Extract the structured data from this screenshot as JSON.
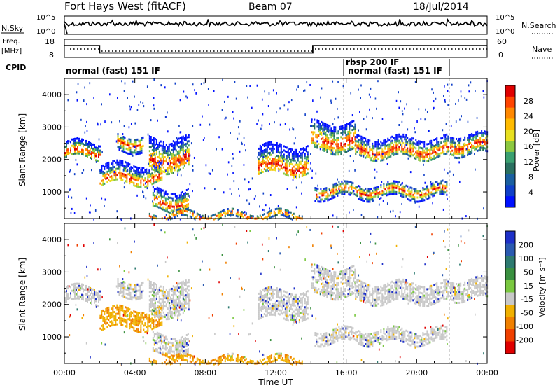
{
  "header": {
    "radar": "Fort Hays West (fitACF)",
    "beam": "Beam 07",
    "date": "18/Jul/2014"
  },
  "noise_panel": {
    "left_label": "N.Sky",
    "right_label": "N.Search",
    "left_ticks": [
      "10^5",
      "10^0"
    ],
    "right_ticks": [
      "10^5",
      "10^0"
    ]
  },
  "freq_panel": {
    "left_label_1": "Freq.",
    "left_label_2": "[MHz]",
    "right_label": "Nave",
    "left_ticks": [
      "18",
      "8"
    ],
    "right_ticks": [
      "60",
      "0"
    ],
    "freq_steps": [
      {
        "start": 0,
        "end": 2.0,
        "mhz": 14.5
      },
      {
        "start": 2.0,
        "end": 14.1,
        "mhz": 10.5
      },
      {
        "start": 14.1,
        "end": 24,
        "mhz": 14.5
      }
    ]
  },
  "cpid": {
    "label": "CPID",
    "programs": [
      {
        "text": "normal (fast) 151 IF",
        "start": 0,
        "row": 1
      },
      {
        "text": "rbsp 200 IF",
        "start": 16.0,
        "row": 0
      },
      {
        "text": "normal (fast) 151 IF",
        "start": 16.3,
        "row": 1
      }
    ],
    "boundaries": [
      16.0,
      21.9
    ]
  },
  "axes": {
    "x_ticks": [
      "00:00",
      "04:00",
      "08:00",
      "12:00",
      "16:00",
      "20:00",
      "00:00"
    ],
    "x_label": "Time UT",
    "x_range_hours": [
      0,
      24
    ],
    "y_label": "Slant Range [km]",
    "y_ticks": [
      "4000",
      "3000",
      "2000",
      "1000"
    ],
    "y_range_km": [
      180,
      4500
    ]
  },
  "colorbars": {
    "power": {
      "title": "Power [dB]",
      "labels": [
        "28",
        "24",
        "20",
        "16",
        "12",
        "8",
        "4"
      ],
      "colors": [
        "#e00000",
        "#ff4400",
        "#ff8800",
        "#ffbb00",
        "#e8e020",
        "#8cc840",
        "#3aa070",
        "#2a7060",
        "#1a5fa0",
        "#1040c8",
        "#0010ff"
      ]
    },
    "velocity": {
      "title": "Velocity [m s⁻¹]",
      "labels": [
        "200",
        "100",
        "50",
        "15",
        "-15",
        "-50",
        "-100",
        "-200"
      ],
      "colors": [
        "#1e30c8",
        "#2a5ab0",
        "#2d7a70",
        "#3a9040",
        "#7ac840",
        "#c8c8c8",
        "#f0b000",
        "#f08000",
        "#f04000",
        "#e00000"
      ]
    }
  },
  "chart_data": {
    "type": "heatmap",
    "x_unit": "hours UT",
    "y_unit": "km",
    "bands": [
      {
        "t0": 0.0,
        "t1": 2.0,
        "r0": 2100,
        "r1": 2600,
        "core": 2250
      },
      {
        "t0": 2.0,
        "t1": 5.5,
        "r0": 1300,
        "r1": 1900,
        "core": 1450
      },
      {
        "t0": 3.0,
        "t1": 4.5,
        "r0": 2300,
        "r1": 2800,
        "core": 2550
      },
      {
        "t0": 5.0,
        "t1": 7.0,
        "r0": 500,
        "r1": 1100,
        "core": 700
      },
      {
        "t0": 4.8,
        "t1": 7.1,
        "r0": 1700,
        "r1": 2700,
        "core": 2000
      },
      {
        "t0": 4.8,
        "t1": 13.5,
        "r0": 200,
        "r1": 450,
        "core": 300
      },
      {
        "t0": 11.0,
        "t1": 13.8,
        "r0": 1600,
        "r1": 2500,
        "core": 1800
      },
      {
        "t0": 14.0,
        "t1": 16.5,
        "r0": 2300,
        "r1": 3200,
        "core": 2600
      },
      {
        "t0": 16.5,
        "t1": 21.8,
        "r0": 2100,
        "r1": 2700,
        "core": 2300
      },
      {
        "t0": 14.2,
        "t1": 21.7,
        "r0": 850,
        "r1": 1250,
        "core": 1050
      },
      {
        "t0": 21.9,
        "t1": 24.0,
        "r0": 2200,
        "r1": 2800,
        "core": 2450
      }
    ]
  }
}
